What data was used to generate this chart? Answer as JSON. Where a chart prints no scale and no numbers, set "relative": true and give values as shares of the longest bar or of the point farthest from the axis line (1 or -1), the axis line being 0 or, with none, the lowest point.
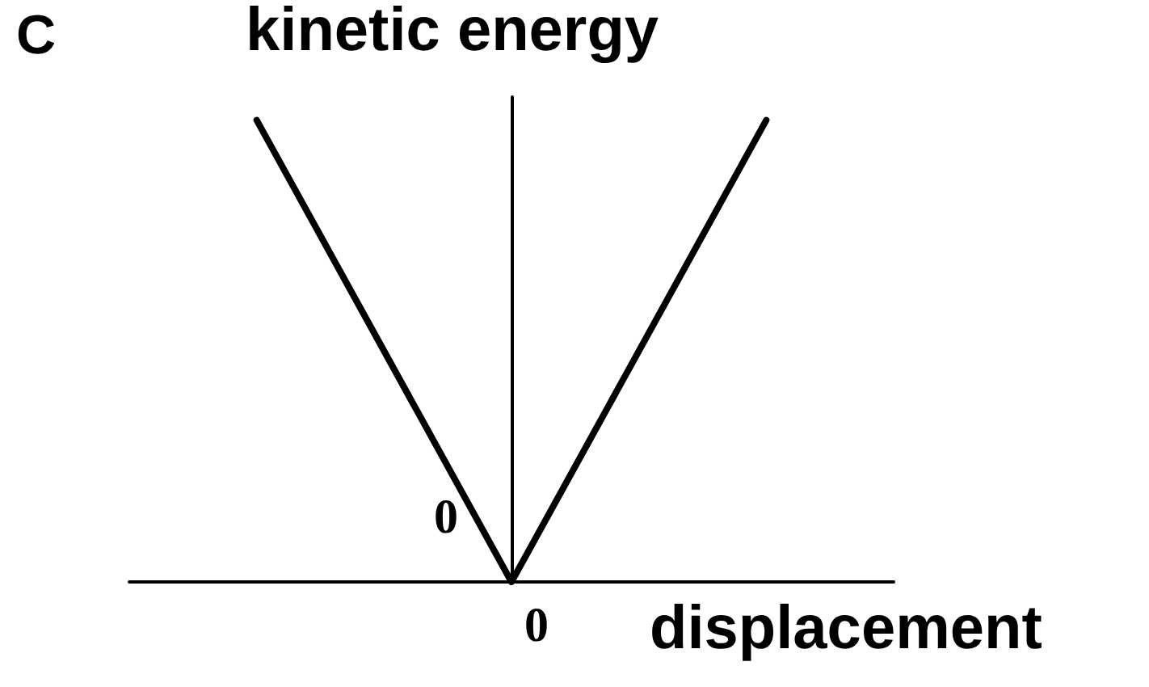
{
  "chart_data": {
    "type": "line",
    "title": "C",
    "xlabel": "displacement",
    "ylabel": "kinetic energy",
    "categories": [
      null,
      null,
      null
    ],
    "relative": true,
    "series": [
      {
        "color": "#000000",
        "values": [
          1,
          0,
          1
        ]
      }
    ],
    "annotations": [
      "0",
      "0"
    ],
    "marker": "none",
    "line_style": "solid"
  }
}
